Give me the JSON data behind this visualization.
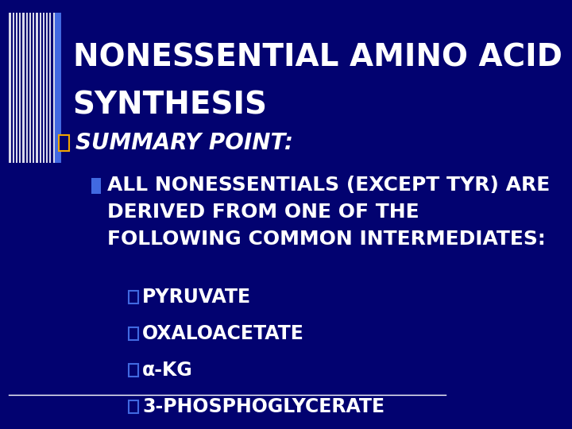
{
  "bg_color": "#020270",
  "title_text_line1": "NONESSENTIAL AMINO ACID",
  "title_text_line2": "SYNTHESIS",
  "title_color": "#ffffff",
  "title_fontsize": 28,
  "bullet1_text": "SUMMARY POINT:",
  "bullet1_color": "#ffffff",
  "bullet1_fontsize": 20,
  "bullet2_line1": "ALL NONESSENTIALS (EXCEPT TYR) ARE",
  "bullet2_line2": "DERIVED FROM ONE OF THE",
  "bullet2_line3": "FOLLOWING COMMON INTERMEDIATES:",
  "bullet2_color": "#ffffff",
  "bullet2_fontsize": 18,
  "sub_bullets": [
    "PYRUVATE",
    "OXALOACETATE",
    "α-KG",
    "3-PHOSPHOGLYCERATE"
  ],
  "sub_bullet_color": "#ffffff",
  "sub_bullet_fontsize": 17,
  "square_bullet1_color": "#f0a500",
  "square_bullet2_color": "#4169e1",
  "square_sub_color": "#4169e1",
  "accent_bar_color": "#4169e1",
  "stripe_color": "#ffffff",
  "bottom_line_color": "#ffffff"
}
